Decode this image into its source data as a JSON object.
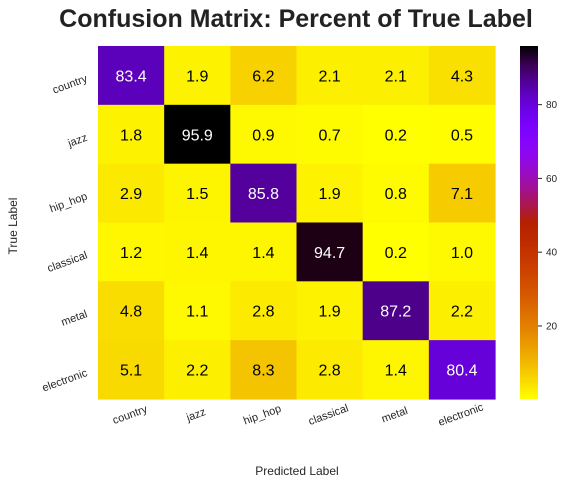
{
  "chart_data": {
    "type": "heatmap",
    "title": "Confusion Matrix: Percent of True Label",
    "xlabel": "Predicted Label",
    "ylabel": "True Label",
    "x_categories": [
      "country",
      "jazz",
      "hip_hop",
      "classical",
      "metal",
      "electronic"
    ],
    "y_categories": [
      "country",
      "jazz",
      "hip_hop",
      "classical",
      "metal",
      "electronic"
    ],
    "values": [
      [
        83.4,
        1.9,
        6.2,
        2.1,
        2.1,
        4.3
      ],
      [
        1.8,
        95.9,
        0.9,
        0.7,
        0.2,
        0.5
      ],
      [
        2.9,
        1.5,
        85.8,
        1.9,
        0.8,
        7.1
      ],
      [
        1.2,
        1.4,
        1.4,
        94.7,
        0.2,
        1.0
      ],
      [
        4.8,
        1.1,
        2.8,
        1.9,
        87.2,
        2.2
      ],
      [
        5.1,
        2.2,
        8.3,
        2.8,
        1.4,
        80.4
      ]
    ],
    "value_format": "0.1",
    "colormap": "gnuplot_r",
    "colorbar": {
      "range": [
        0.2,
        95.9
      ],
      "ticks": [
        20,
        40,
        60,
        80
      ]
    }
  }
}
